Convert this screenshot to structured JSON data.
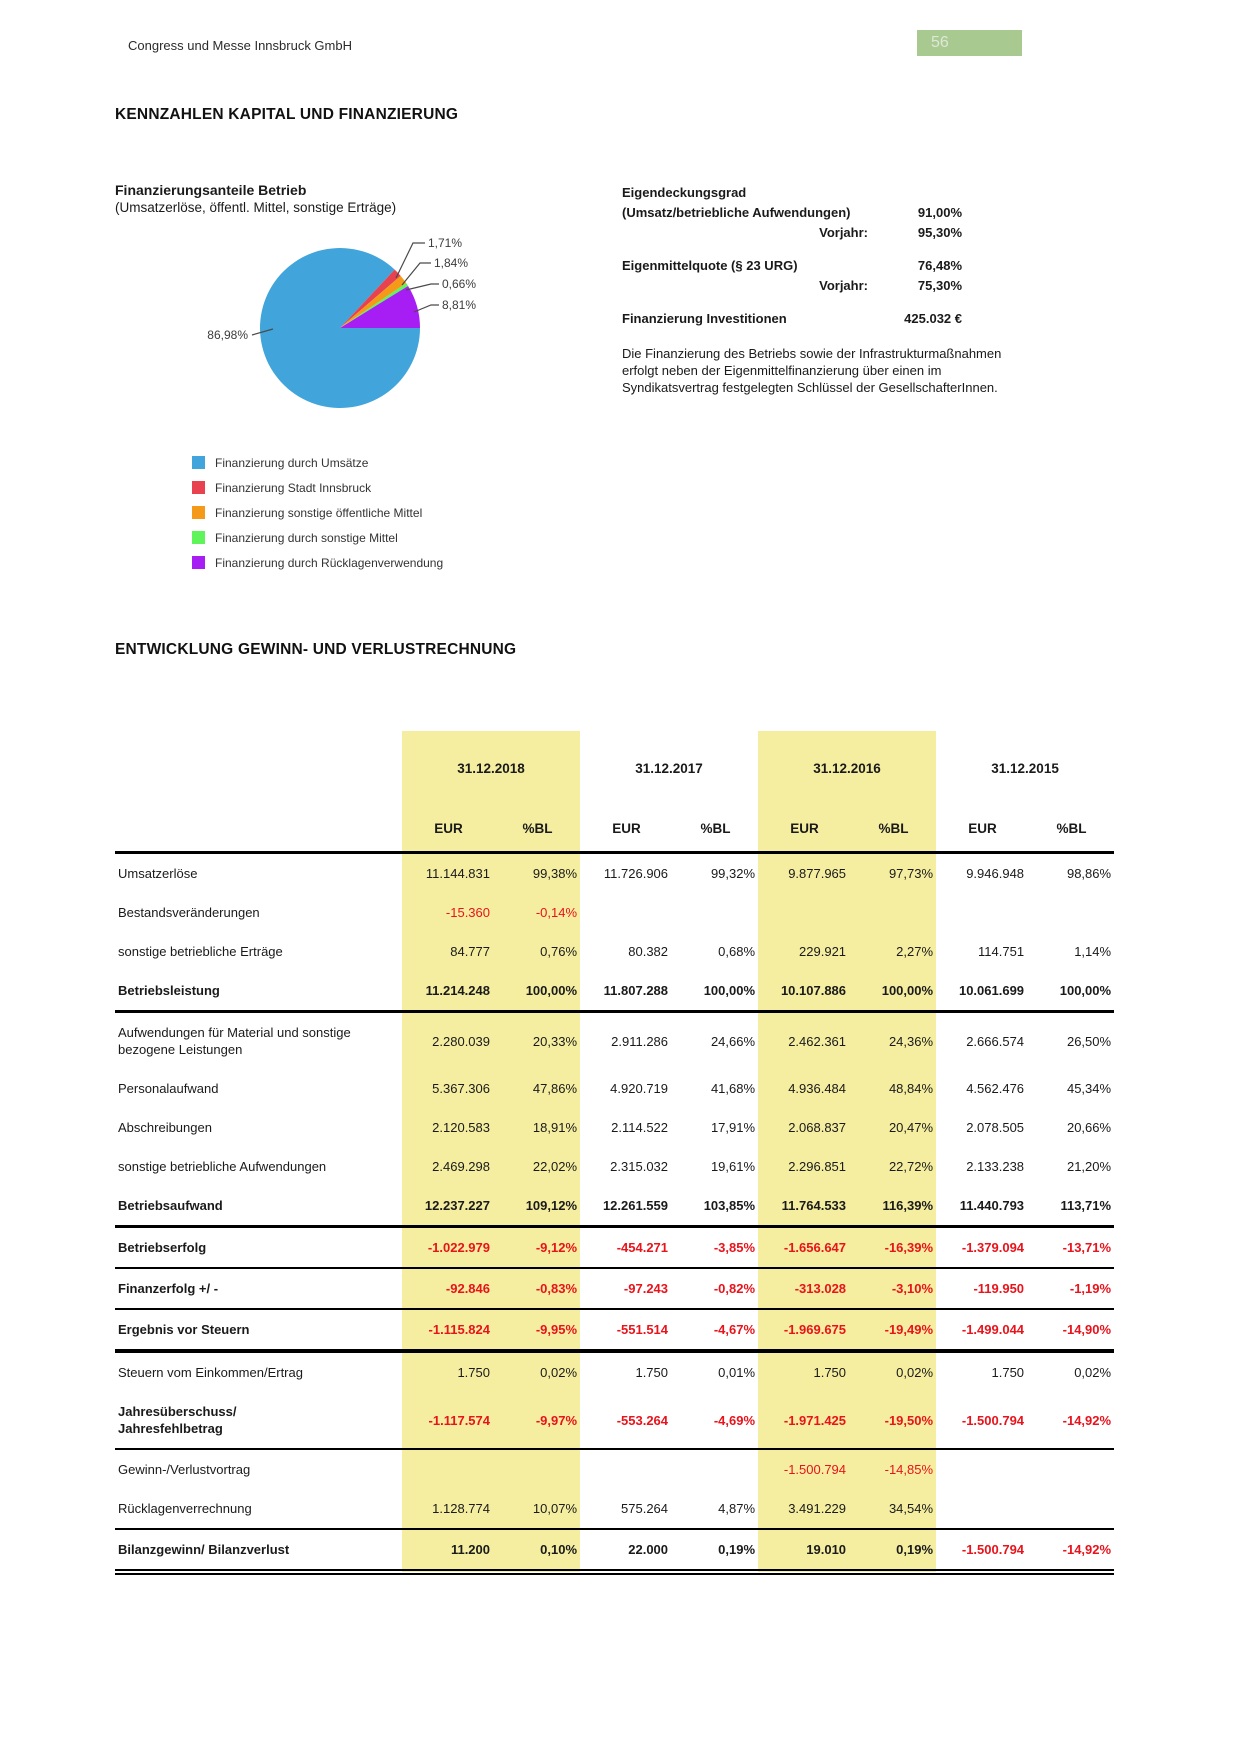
{
  "header": {
    "company": "Congress und Messe Innsbruck GmbH",
    "page_number": "56"
  },
  "sections": {
    "kennzahlen": "KENNZAHLEN KAPITAL UND FINANZIERUNG",
    "guv": "ENTWICKLUNG GEWINN- UND VERLUSTRECHNUNG"
  },
  "chart": {
    "title": "Finanzierungsanteile Betrieb",
    "subtitle": "(Umsatzerlöse, öffentl. Mittel, sonstige Erträge)"
  },
  "chart_data": {
    "type": "pie",
    "title": "Finanzierungsanteile Betrieb (Umsatzerlöse, öffentl. Mittel, sonstige Erträge)",
    "labels": [
      "Finanzierung durch Umsätze",
      "Finanzierung Stadt Innsbruck",
      "Finanzierung sonstige öffentliche Mittel",
      "Finanzierung durch sonstige Mittel",
      "Finanzierung durch Rücklagenverwendung"
    ],
    "values": [
      86.98,
      1.71,
      1.84,
      0.66,
      8.81
    ],
    "value_labels": [
      "86,98%",
      "1,71%",
      "1,84%",
      "0,66%",
      "8,81%"
    ],
    "colors": [
      "#41A5DB",
      "#E8414F",
      "#F59A18",
      "#5FF55A",
      "#A61EF4"
    ],
    "legend_position": "bottom-left",
    "start_angle_deg_cw_from_north": 90
  },
  "key_figures": {
    "blocks": [
      {
        "lines": [
          {
            "label": "Eigendeckungsgrad",
            "value": ""
          },
          {
            "label": "(Umsatz/betriebliche Aufwendungen)",
            "value": "91,00%"
          },
          {
            "label": "Vorjahr:",
            "value": "95,30%",
            "align": "right"
          }
        ]
      },
      {
        "lines": [
          {
            "label": "Eigenmittelquote (§ 23 URG)",
            "value": "76,48%"
          },
          {
            "label": "Vorjahr:",
            "value": "75,30%",
            "align": "right"
          }
        ]
      },
      {
        "lines": [
          {
            "label": "Finanzierung Investitionen",
            "value": "425.032 €"
          }
        ]
      }
    ],
    "paragraph": "Die Finanzierung des Betriebs sowie der Infrastrukturmaßnahmen erfolgt neben der Eigenmittelfinanzierung über einen im Syndikatsvertrag festgelegten Schlüssel der GesellschafterInnen."
  },
  "table": {
    "col_dates": [
      "31.12.2018",
      "31.12.2017",
      "31.12.2016",
      "31.12.2015"
    ],
    "sub_headers": [
      "EUR",
      "%BL"
    ],
    "rows": [
      {
        "label": "Umsatzerlöse",
        "values": [
          "11.144.831",
          "99,38%",
          "11.726.906",
          "99,32%",
          "9.877.965",
          "97,73%",
          "9.946.948",
          "98,86%"
        ]
      },
      {
        "label": "Bestandsveränderungen",
        "values": [
          "-15.360",
          "-0,14%",
          "",
          "",
          "",
          "",
          "",
          ""
        ]
      },
      {
        "label": "sonstige betriebliche Erträge",
        "values": [
          "84.777",
          "0,76%",
          "80.382",
          "0,68%",
          "229.921",
          "2,27%",
          "114.751",
          "1,14%"
        ]
      },
      {
        "label": "Betriebsleistung",
        "bold": true,
        "rule": "thick",
        "values": [
          "11.214.248",
          "100,00%",
          "11.807.288",
          "100,00%",
          "10.107.886",
          "100,00%",
          "10.061.699",
          "100,00%"
        ]
      },
      {
        "label": "Aufwendungen für Material und sonstige\nbezogene Leistungen",
        "values": [
          "2.280.039",
          "20,33%",
          "2.911.286",
          "24,66%",
          "2.462.361",
          "24,36%",
          "2.666.574",
          "26,50%"
        ]
      },
      {
        "label": "Personalaufwand",
        "values": [
          "5.367.306",
          "47,86%",
          "4.920.719",
          "41,68%",
          "4.936.484",
          "48,84%",
          "4.562.476",
          "45,34%"
        ]
      },
      {
        "label": "Abschreibungen",
        "values": [
          "2.120.583",
          "18,91%",
          "2.114.522",
          "17,91%",
          "2.068.837",
          "20,47%",
          "2.078.505",
          "20,66%"
        ]
      },
      {
        "label": "sonstige betriebliche Aufwendungen",
        "values": [
          "2.469.298",
          "22,02%",
          "2.315.032",
          "19,61%",
          "2.296.851",
          "22,72%",
          "2.133.238",
          "21,20%"
        ]
      },
      {
        "label": "Betriebsaufwand",
        "bold": true,
        "rule": "thick",
        "values": [
          "12.237.227",
          "109,12%",
          "12.261.559",
          "103,85%",
          "11.764.533",
          "116,39%",
          "11.440.793",
          "113,71%"
        ]
      },
      {
        "label": "Betriebserfolg",
        "bold": true,
        "rule": "medium",
        "values": [
          "-1.022.979",
          "-9,12%",
          "-454.271",
          "-3,85%",
          "-1.656.647",
          "-16,39%",
          "-1.379.094",
          "-13,71%"
        ]
      },
      {
        "label": "Finanzerfolg +/ -",
        "bold": true,
        "rule": "medium",
        "values": [
          "-92.846",
          "-0,83%",
          "-97.243",
          "-0,82%",
          "-313.028",
          "-3,10%",
          "-119.950",
          "-1,19%"
        ]
      },
      {
        "label": "Ergebnis vor Steuern",
        "bold": true,
        "rule": "xthick",
        "values": [
          "-1.115.824",
          "-9,95%",
          "-551.514",
          "-4,67%",
          "-1.969.675",
          "-19,49%",
          "-1.499.044",
          "-14,90%"
        ]
      },
      {
        "label": "Steuern vom Einkommen/Ertrag",
        "values": [
          "1.750",
          "0,02%",
          "1.750",
          "0,01%",
          "1.750",
          "0,02%",
          "1.750",
          "0,02%"
        ]
      },
      {
        "label": "Jahresüberschuss/\nJahresfehlbetrag",
        "bold": true,
        "rule": "medium",
        "values": [
          "-1.117.574",
          "-9,97%",
          "-553.264",
          "-4,69%",
          "-1.971.425",
          "-19,50%",
          "-1.500.794",
          "-14,92%"
        ]
      },
      {
        "label": "Gewinn-/Verlustvortrag",
        "values": [
          "",
          "",
          "",
          "",
          "-1.500.794",
          "-14,85%",
          "",
          ""
        ]
      },
      {
        "label": "Rücklagenverrechnung",
        "rule": "medium",
        "values": [
          "1.128.774",
          "10,07%",
          "575.264",
          "4,87%",
          "3.491.229",
          "34,54%",
          "",
          ""
        ]
      },
      {
        "label": "Bilanzgewinn/ Bilanzverlust",
        "bold": true,
        "rule": "double",
        "values": [
          "11.200",
          "0,10%",
          "22.000",
          "0,19%",
          "19.010",
          "0,19%",
          "-1.500.794",
          "-14,92%"
        ]
      }
    ]
  },
  "colors": {
    "highlight": "#F5EEA0",
    "negative_text": "#E8131B",
    "badge_green": "#A8CA90"
  }
}
